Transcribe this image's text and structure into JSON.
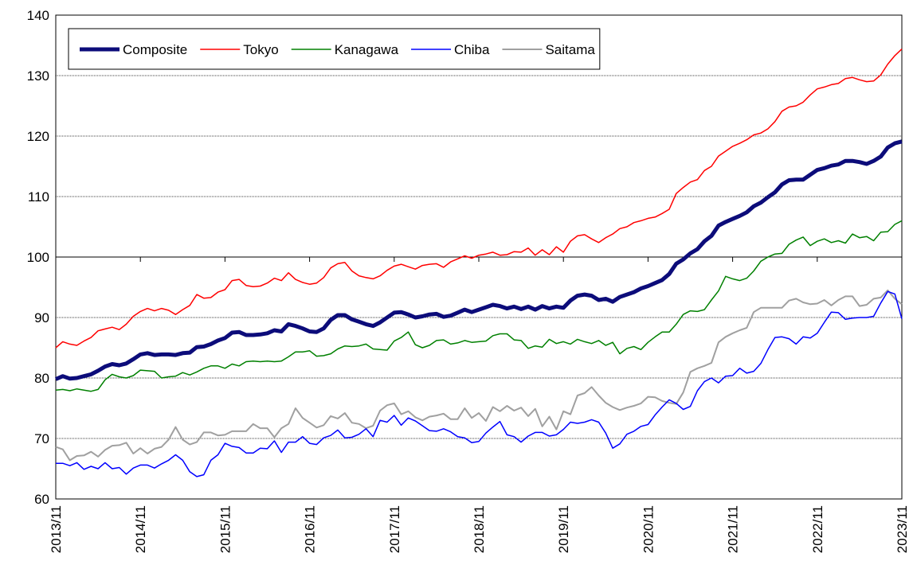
{
  "chart_data": {
    "type": "line",
    "categories": [
      "2013/11",
      null,
      null,
      null,
      null,
      null,
      null,
      null,
      null,
      null,
      null,
      null,
      "2014/11",
      null,
      null,
      null,
      null,
      null,
      null,
      null,
      null,
      null,
      null,
      null,
      "2015/11",
      null,
      null,
      null,
      null,
      null,
      null,
      null,
      null,
      null,
      null,
      null,
      "2016/11",
      null,
      null,
      null,
      null,
      null,
      null,
      null,
      null,
      null,
      null,
      null,
      "2017/11",
      null,
      null,
      null,
      null,
      null,
      null,
      null,
      null,
      null,
      null,
      null,
      "2018/11",
      null,
      null,
      null,
      null,
      null,
      null,
      null,
      null,
      null,
      null,
      null,
      "2019/11",
      null,
      null,
      null,
      null,
      null,
      null,
      null,
      null,
      null,
      null,
      null,
      "2020/11",
      null,
      null,
      null,
      null,
      null,
      null,
      null,
      null,
      null,
      null,
      null,
      "2021/11",
      null,
      null,
      null,
      null,
      null,
      null,
      null,
      null,
      null,
      null,
      null,
      "2022/11",
      null,
      null,
      null,
      null,
      null,
      null,
      null,
      null,
      null,
      null,
      null,
      "2023/11"
    ],
    "ylim": [
      60,
      140
    ],
    "yticks": [
      60,
      70,
      80,
      90,
      100,
      110,
      120,
      130,
      140
    ],
    "x_axis_at": 100,
    "grid": true,
    "legend": "top-left",
    "series": [
      {
        "name": "Composite",
        "color": "#0c0c7a",
        "width": 5,
        "values": [
          79.8,
          80.3,
          79.9,
          80.0,
          80.3,
          80.6,
          81.2,
          81.9,
          82.3,
          82.1,
          82.4,
          83.1,
          83.9,
          84.1,
          83.8,
          83.9,
          83.9,
          83.8,
          84.1,
          84.2,
          85.1,
          85.2,
          85.6,
          86.2,
          86.6,
          87.5,
          87.6,
          87.1,
          87.1,
          87.2,
          87.4,
          87.9,
          87.7,
          88.9,
          88.6,
          88.2,
          87.7,
          87.6,
          88.2,
          89.6,
          90.4,
          90.4,
          89.7,
          89.3,
          88.9,
          88.6,
          89.2,
          90.0,
          90.8,
          90.9,
          90.5,
          90.0,
          90.2,
          90.5,
          90.6,
          90.1,
          90.3,
          90.8,
          91.3,
          90.9,
          91.3,
          91.7,
          92.1,
          91.9,
          91.5,
          91.8,
          91.4,
          91.8,
          91.3,
          91.9,
          91.5,
          91.8,
          91.6,
          92.8,
          93.6,
          93.8,
          93.6,
          92.9,
          93.1,
          92.6,
          93.4,
          93.8,
          94.2,
          94.8,
          95.2,
          95.7,
          96.2,
          97.2,
          98.9,
          99.6,
          100.6,
          101.3,
          102.6,
          103.5,
          105.2,
          105.8,
          106.3,
          106.8,
          107.4,
          108.4,
          109.0,
          109.9,
          110.7,
          112.0,
          112.7,
          112.8,
          112.8,
          113.6,
          114.4,
          114.7,
          115.1,
          115.3,
          115.9,
          115.9,
          115.7,
          115.4,
          115.9,
          116.6,
          118.1,
          118.8,
          119.1
        ]
      },
      {
        "name": "Tokyo",
        "color": "#ff0000",
        "width": 1.5,
        "values": [
          85.0,
          86.0,
          85.6,
          85.4,
          86.1,
          86.7,
          87.8,
          88.1,
          88.4,
          88.0,
          88.9,
          90.2,
          91.0,
          91.5,
          91.1,
          91.5,
          91.2,
          90.5,
          91.3,
          92.0,
          93.8,
          93.2,
          93.3,
          94.2,
          94.6,
          96.1,
          96.3,
          95.3,
          95.1,
          95.2,
          95.7,
          96.5,
          96.1,
          97.4,
          96.3,
          95.8,
          95.5,
          95.7,
          96.6,
          98.2,
          98.9,
          99.1,
          97.7,
          96.9,
          96.6,
          96.4,
          96.9,
          97.8,
          98.5,
          98.8,
          98.4,
          98.0,
          98.6,
          98.8,
          98.9,
          98.3,
          99.2,
          99.7,
          100.2,
          99.8,
          100.3,
          100.5,
          100.8,
          100.3,
          100.4,
          100.9,
          100.8,
          101.5,
          100.3,
          101.2,
          100.4,
          101.7,
          100.8,
          102.6,
          103.5,
          103.7,
          103.0,
          102.4,
          103.2,
          103.8,
          104.7,
          105.0,
          105.7,
          106.0,
          106.4,
          106.6,
          107.2,
          107.9,
          110.5,
          111.5,
          112.4,
          112.8,
          114.3,
          115.0,
          116.7,
          117.5,
          118.3,
          118.8,
          119.4,
          120.2,
          120.5,
          121.2,
          122.4,
          124.1,
          124.8,
          125.0,
          125.6,
          126.8,
          127.8,
          128.1,
          128.5,
          128.7,
          129.5,
          129.7,
          129.3,
          129.0,
          129.1,
          130.1,
          131.9,
          133.3,
          134.4
        ]
      },
      {
        "name": "Kanagawa",
        "color": "#008000",
        "width": 1.5,
        "values": [
          78.0,
          78.1,
          77.9,
          78.2,
          78.0,
          77.8,
          78.1,
          79.7,
          80.6,
          80.2,
          80.0,
          80.4,
          81.3,
          81.2,
          81.1,
          80.0,
          80.2,
          80.3,
          80.9,
          80.5,
          81.0,
          81.6,
          82.0,
          82.0,
          81.6,
          82.3,
          82.0,
          82.7,
          82.8,
          82.7,
          82.8,
          82.7,
          82.8,
          83.5,
          84.3,
          84.3,
          84.5,
          83.6,
          83.7,
          84.0,
          84.8,
          85.3,
          85.2,
          85.3,
          85.6,
          84.8,
          84.7,
          84.6,
          86.1,
          86.7,
          87.6,
          85.5,
          85.0,
          85.4,
          86.2,
          86.3,
          85.6,
          85.8,
          86.2,
          85.9,
          86.0,
          86.1,
          87.0,
          87.3,
          87.3,
          86.3,
          86.2,
          84.9,
          85.3,
          85.1,
          86.4,
          85.7,
          86.0,
          85.6,
          86.4,
          86.0,
          85.7,
          86.2,
          85.4,
          85.9,
          84.0,
          84.9,
          85.2,
          84.7,
          85.9,
          86.8,
          87.6,
          87.6,
          88.9,
          90.5,
          91.1,
          91.0,
          91.3,
          92.9,
          94.4,
          96.8,
          96.4,
          96.1,
          96.5,
          97.7,
          99.3,
          100.0,
          100.5,
          100.6,
          102.1,
          102.8,
          103.3,
          101.9,
          102.6,
          103.0,
          102.4,
          102.7,
          102.3,
          103.8,
          103.2,
          103.4,
          102.7,
          104.1,
          104.2,
          105.4,
          106.0
        ]
      },
      {
        "name": "Chiba",
        "color": "#0000ff",
        "width": 1.5,
        "values": [
          65.9,
          65.9,
          65.5,
          66.0,
          64.9,
          65.4,
          65.0,
          66.0,
          65.0,
          65.2,
          64.1,
          65.1,
          65.6,
          65.6,
          65.1,
          65.8,
          66.4,
          67.3,
          66.4,
          64.5,
          63.7,
          64.0,
          66.4,
          67.3,
          69.2,
          68.7,
          68.5,
          67.6,
          67.6,
          68.4,
          68.3,
          69.6,
          67.7,
          69.4,
          69.4,
          70.3,
          69.2,
          69.0,
          70.1,
          70.5,
          71.4,
          70.1,
          70.2,
          70.7,
          71.6,
          70.3,
          73.0,
          72.7,
          73.8,
          72.2,
          73.4,
          72.9,
          72.1,
          71.3,
          71.2,
          71.6,
          71.1,
          70.3,
          70.1,
          69.3,
          69.5,
          70.9,
          71.9,
          72.8,
          70.6,
          70.3,
          69.4,
          70.4,
          71.0,
          71.0,
          70.4,
          70.6,
          71.5,
          72.7,
          72.5,
          72.7,
          73.1,
          72.7,
          70.9,
          68.4,
          69.1,
          70.7,
          71.2,
          72.0,
          72.3,
          73.9,
          75.2,
          76.4,
          75.8,
          74.8,
          75.3,
          77.9,
          79.4,
          80.0,
          79.2,
          80.3,
          80.4,
          81.6,
          80.8,
          81.1,
          82.4,
          84.7,
          86.7,
          86.8,
          86.5,
          85.6,
          86.8,
          86.6,
          87.4,
          89.2,
          90.9,
          90.8,
          89.7,
          89.9,
          90.0,
          90.0,
          90.2,
          92.4,
          94.3,
          93.9,
          89.8
        ]
      },
      {
        "name": "Saitama",
        "color": "#a0a0a0",
        "width": 2,
        "values": [
          68.6,
          68.2,
          66.4,
          67.1,
          67.2,
          67.8,
          67.0,
          68.1,
          68.8,
          68.9,
          69.3,
          67.5,
          68.4,
          67.5,
          68.3,
          68.6,
          69.8,
          71.9,
          69.8,
          69.0,
          69.4,
          71.0,
          71.0,
          70.5,
          70.6,
          71.2,
          71.2,
          71.2,
          72.4,
          71.7,
          71.7,
          70.2,
          71.7,
          72.4,
          75.0,
          73.4,
          72.6,
          71.8,
          72.2,
          73.7,
          73.3,
          74.2,
          72.6,
          72.4,
          71.7,
          72.1,
          74.6,
          75.5,
          75.8,
          74.0,
          74.5,
          73.5,
          73.0,
          73.6,
          73.8,
          74.1,
          73.2,
          73.2,
          75.0,
          73.4,
          74.2,
          72.9,
          75.2,
          74.5,
          75.4,
          74.6,
          75.1,
          73.7,
          74.9,
          72.0,
          73.6,
          71.5,
          74.5,
          74.0,
          77.1,
          77.5,
          78.5,
          77.1,
          75.9,
          75.2,
          74.7,
          75.1,
          75.4,
          75.8,
          76.9,
          76.8,
          76.2,
          75.9,
          75.7,
          77.6,
          81.0,
          81.6,
          82.0,
          82.5,
          85.9,
          86.8,
          87.4,
          87.9,
          88.3,
          90.9,
          91.6,
          91.6,
          91.6,
          91.6,
          92.8,
          93.1,
          92.5,
          92.2,
          92.3,
          92.9,
          92.0,
          92.9,
          93.5,
          93.5,
          91.9,
          92.1,
          93.1,
          93.3,
          94.5,
          93.1,
          92.2
        ]
      }
    ]
  }
}
